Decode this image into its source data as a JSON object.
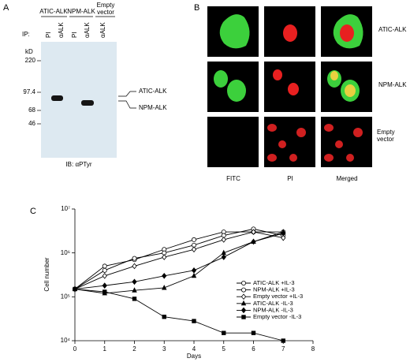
{
  "panel_a": {
    "label": "A",
    "groups": [
      "ATIC-ALK",
      "NPM-ALK",
      "Empty vector"
    ],
    "ip_label": "IP:",
    "lanes": [
      "PI",
      "αALK",
      "PI",
      "αALK",
      "αALK"
    ],
    "kd_label": "kD",
    "markers": [
      220,
      97.4,
      68,
      46
    ],
    "band_labels": [
      "ATIC-ALK",
      "NPM-ALK"
    ],
    "blot_label": "IB: αPTyr"
  },
  "panel_b": {
    "label": "B",
    "row_labels": [
      "ATIC-ALK",
      "NPM-ALK",
      "Empty vector"
    ],
    "column_labels": [
      "FITC",
      "PI",
      "Merged"
    ]
  },
  "chart_data": {
    "type": "line",
    "panel_label": "C",
    "xlabel": "Days",
    "ylabel": "Cell number",
    "x": [
      0,
      1,
      2,
      3,
      4,
      5,
      6,
      7
    ],
    "xlim": [
      0,
      8
    ],
    "xticks": [
      0,
      1,
      2,
      3,
      4,
      5,
      6,
      7,
      8
    ],
    "ylim": [
      10000,
      10000000
    ],
    "log_scale": true,
    "yticks": [
      {
        "value": 10000,
        "label": "10⁴"
      },
      {
        "value": 100000,
        "label": "10⁵"
      },
      {
        "value": 1000000,
        "label": "10⁶"
      },
      {
        "value": 10000000,
        "label": "10⁷"
      }
    ],
    "legend": "right",
    "series": [
      {
        "name": "ATIC-ALK +IL-3",
        "color": "#000000",
        "marker": "open-circle",
        "values": [
          150000,
          500000,
          700000,
          1200000,
          2000000,
          3000000,
          3000000,
          3000000
        ]
      },
      {
        "name": "NPM-ALK +IL-3",
        "color": "#000000",
        "marker": "open-circle",
        "values": [
          150000,
          400000,
          750000,
          1000000,
          1500000,
          2500000,
          3500000,
          2500000
        ]
      },
      {
        "name": "Empty vector +IL-3",
        "color": "#000000",
        "marker": "open-diamond",
        "values": [
          150000,
          300000,
          500000,
          800000,
          1200000,
          2000000,
          3000000,
          2200000
        ]
      },
      {
        "name": "ATIC-ALK -IL-3",
        "color": "#000000",
        "marker": "triangle",
        "values": [
          150000,
          120000,
          140000,
          160000,
          300000,
          1000000,
          1800000,
          3000000
        ]
      },
      {
        "name": "NPM-ALK -IL-3",
        "color": "#000000",
        "marker": "diamond",
        "values": [
          150000,
          180000,
          220000,
          300000,
          400000,
          800000,
          1800000,
          2800000
        ]
      },
      {
        "name": "Empty vector -IL-3",
        "color": "#000000",
        "marker": "square",
        "values": [
          150000,
          130000,
          90000,
          35000,
          28000,
          15000,
          15000,
          10000
        ]
      }
    ]
  }
}
